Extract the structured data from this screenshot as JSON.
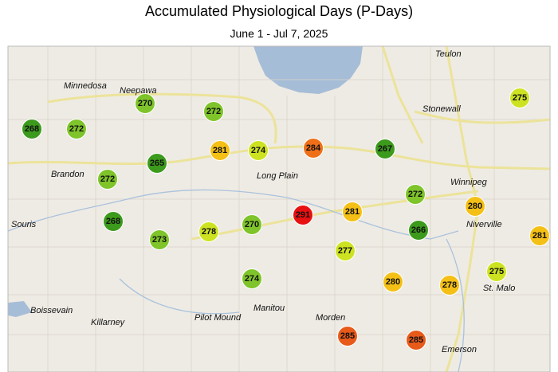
{
  "title": "Accumulated Physiological Days (P-Days)",
  "subtitle": "June 1 - Jul 7, 2025",
  "places": [
    "Teulon",
    "Minnedosa",
    "Neepawa",
    "Stonewall",
    "Winnipeg",
    "Long Plain",
    "Brandon",
    "Souris",
    "Niverville",
    "St. Malo",
    "Boissevain",
    "Killarney",
    "Pilot Mound",
    "Manitou",
    "Morden",
    "Emerson"
  ],
  "stations": [
    {
      "value": 268,
      "color": "#3c9a1c"
    },
    {
      "value": 272,
      "color": "#7ec42a"
    },
    {
      "value": 270,
      "color": "#7ec42a"
    },
    {
      "value": 272,
      "color": "#7ec42a"
    },
    {
      "value": 265,
      "color": "#3c9a1c"
    },
    {
      "value": 272,
      "color": "#7ec42a"
    },
    {
      "value": 281,
      "color": "#f5c016"
    },
    {
      "value": 274,
      "color": "#cde322"
    },
    {
      "value": 284,
      "color": "#ef6f18"
    },
    {
      "value": 267,
      "color": "#3c9a1c"
    },
    {
      "value": 275,
      "color": "#cde322"
    },
    {
      "value": 268,
      "color": "#3c9a1c"
    },
    {
      "value": 273,
      "color": "#7ec42a"
    },
    {
      "value": 278,
      "color": "#cde322"
    },
    {
      "value": 270,
      "color": "#7ec42a"
    },
    {
      "value": 291,
      "color": "#e81010"
    },
    {
      "value": 281,
      "color": "#f5c016"
    },
    {
      "value": 272,
      "color": "#7ec42a"
    },
    {
      "value": 280,
      "color": "#f5c016"
    },
    {
      "value": 266,
      "color": "#3c9a1c"
    },
    {
      "value": 277,
      "color": "#cde322"
    },
    {
      "value": 281,
      "color": "#f5c016"
    },
    {
      "value": 274,
      "color": "#7ec42a"
    },
    {
      "value": 280,
      "color": "#f5c016"
    },
    {
      "value": 278,
      "color": "#f5c016"
    },
    {
      "value": 275,
      "color": "#cde322"
    },
    {
      "value": 285,
      "color": "#e85a1a"
    },
    {
      "value": 285,
      "color": "#e85a1a"
    }
  ]
}
